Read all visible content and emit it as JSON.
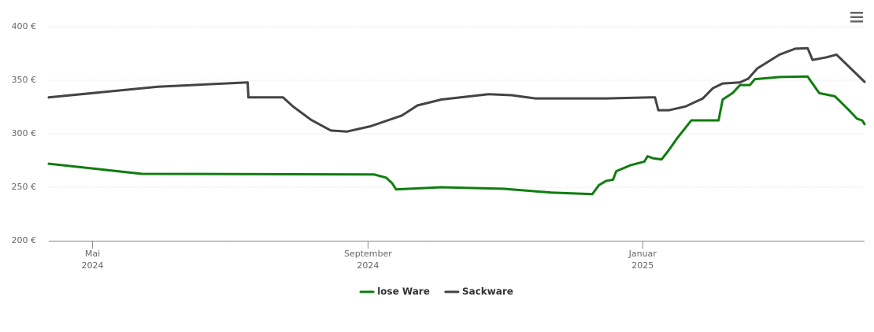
{
  "chart_data": {
    "type": "line",
    "xlim": [
      2024.28,
      2025.269
    ],
    "xticks": [
      {
        "value": 2024.333,
        "label": [
          "Mai",
          "2024"
        ]
      },
      {
        "value": 2024.667,
        "label": [
          "September",
          "2024"
        ]
      },
      {
        "value": 2025.0,
        "label": [
          "Januar",
          "2025"
        ]
      }
    ],
    "ylim": [
      200,
      400
    ],
    "yticks": [
      {
        "value": 200,
        "label": "200 €"
      },
      {
        "value": 250,
        "label": "250 €"
      },
      {
        "value": 300,
        "label": "300 €"
      },
      {
        "value": 350,
        "label": "350 €"
      },
      {
        "value": 400,
        "label": "400 €"
      }
    ],
    "grid": true,
    "legend": "bottom",
    "series": [
      {
        "name": "lose Ware",
        "color": "#0f7d0f",
        "x": [
          2024.28,
          2024.393,
          2024.674,
          2024.689,
          2024.696,
          2024.701,
          2024.756,
          2024.832,
          2024.889,
          2024.939,
          2024.947,
          2024.956,
          2024.964,
          2024.968,
          2024.985,
          2025.002,
          2025.006,
          2025.013,
          2025.023,
          2025.032,
          2025.042,
          2025.059,
          2025.092,
          2025.097,
          2025.109,
          2025.118,
          2025.13,
          2025.136,
          2025.166,
          2025.2,
          2025.204,
          2025.214,
          2025.233,
          2025.241,
          2025.252,
          2025.26,
          2025.266,
          2025.269
        ],
        "values": [
          272,
          262.5,
          262,
          259,
          254,
          248,
          250,
          248.5,
          245,
          243.5,
          252,
          256,
          257,
          265,
          270.5,
          274,
          279,
          277,
          276,
          285,
          296,
          312.5,
          312.5,
          332,
          338,
          345.5,
          345.5,
          351,
          353,
          353.5,
          349,
          338,
          335,
          329,
          320.5,
          314,
          312.5,
          309
        ]
      },
      {
        "name": "Sackware",
        "color": "#434348",
        "x": [
          2024.28,
          2024.412,
          2024.521,
          2024.522,
          2024.564,
          2024.576,
          2024.598,
          2024.622,
          2024.641,
          2024.67,
          2024.708,
          2024.727,
          2024.756,
          2024.813,
          2024.841,
          2024.87,
          2024.956,
          2025.01,
          2025.015,
          2025.019,
          2025.032,
          2025.052,
          2025.073,
          2025.085,
          2025.097,
          2025.118,
          2025.128,
          2025.139,
          2025.166,
          2025.185,
          2025.2,
          2025.206,
          2025.223,
          2025.235,
          2025.269
        ],
        "values": [
          334,
          344,
          348,
          334,
          334,
          325.5,
          313,
          303,
          302,
          307,
          317,
          326.5,
          332,
          337,
          336,
          333,
          333,
          334,
          334,
          322,
          322,
          325.5,
          333,
          342.5,
          347,
          348,
          351.5,
          361,
          374,
          379.5,
          380,
          369,
          371.5,
          374,
          348.5
        ]
      }
    ]
  }
}
